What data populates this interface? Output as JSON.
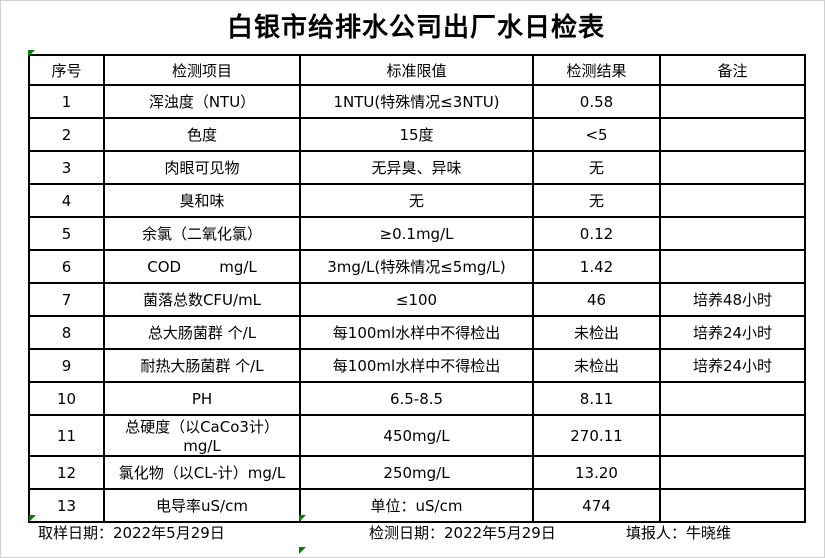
{
  "title": "白银市给排水公司出厂水日检表",
  "table": {
    "columns": [
      "序号",
      "检测项目",
      "标准限值",
      "检测结果",
      "备注"
    ],
    "rows": [
      [
        "1",
        "浑浊度（NTU）",
        "1NTU(特殊情况≤3NTU)",
        "0.58",
        ""
      ],
      [
        "2",
        "色度",
        "15度",
        "<5",
        ""
      ],
      [
        "3",
        "肉眼可见物",
        "无异臭、异味",
        "无",
        ""
      ],
      [
        "4",
        "臭和味",
        "无",
        "无",
        ""
      ],
      [
        "5",
        "余氯（二氧化氯）",
        "≥0.1mg/L",
        "0.12",
        ""
      ],
      [
        "6",
        "COD        mg/L",
        "3mg/L(特殊情况≤5mg/L)",
        "1.42",
        ""
      ],
      [
        "7",
        "菌落总数CFU/mL",
        "≤100",
        "46",
        "培养48小时"
      ],
      [
        "8",
        "总大肠菌群 个/L",
        "每100ml水样中不得检出",
        "未检出",
        "培养24小时"
      ],
      [
        "9",
        "耐热大肠菌群 个/L",
        "每100ml水样中不得检出",
        "未检出",
        "培养24小时"
      ],
      [
        "10",
        "PH",
        "6.5-8.5",
        "8.11",
        ""
      ],
      [
        "11",
        "总硬度（以CaCo3计）mg/L",
        "450mg/L",
        "270.11",
        ""
      ],
      [
        "12",
        "氯化物（以CL-计）mg/L",
        "250mg/L",
        "13.20",
        ""
      ],
      [
        "13",
        "电导率uS/cm",
        "单位：uS/cm",
        "474",
        ""
      ]
    ]
  },
  "footer": {
    "sampling_date": "取样日期：2022年5月29日",
    "test_date": "检测日期：2022年5月29日",
    "reporter": "填报人：牛晓维"
  },
  "icons": {
    "error_indicator": "excel-green-corner-triangle"
  },
  "colors": {
    "error_indicator_green": "#008000",
    "border": "#000000",
    "background": "#ffffff",
    "text": "#000000"
  }
}
